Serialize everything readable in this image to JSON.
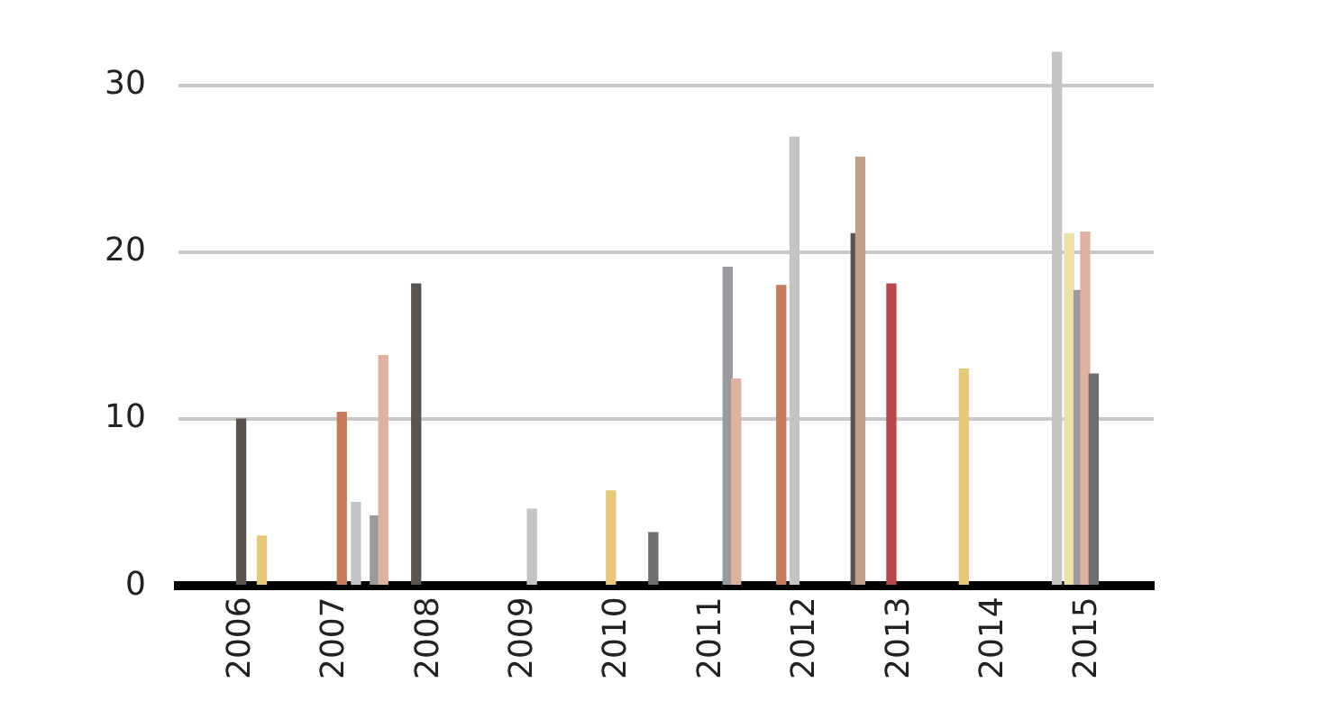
{
  "chart_data": {
    "type": "bar",
    "x": [
      2006.0,
      2006.22,
      2007.07,
      2007.22,
      2007.42,
      2007.51,
      2007.86,
      2009.09,
      2009.93,
      2010.38,
      2011.17,
      2011.26,
      2011.74,
      2011.88,
      2012.53,
      2012.58,
      2012.91,
      2013.68,
      2014.67,
      2014.8,
      2014.9,
      2014.97,
      2015.06
    ],
    "values": [
      10.0,
      3.0,
      10.4,
      5.0,
      4.2,
      13.8,
      18.1,
      4.6,
      5.7,
      3.2,
      19.1,
      12.4,
      18.0,
      26.9,
      21.1,
      25.7,
      18.1,
      13.0,
      32.0,
      21.1,
      17.7,
      21.2,
      12.7
    ],
    "colors": [
      "#5a5350",
      "#e6c878",
      "#c87a5a",
      "#c4c4c4",
      "#9a9a9e",
      "#e0b0a0",
      "#5a5350",
      "#c4c4c4",
      "#e6c878",
      "#6e6e70",
      "#9a9a9e",
      "#e0b0a0",
      "#c87a5a",
      "#c4c4c4",
      "#5a5350",
      "#c0a088",
      "#b84848",
      "#e6c878",
      "#c4c4c4",
      "#ece0a8",
      "#9a9a9e",
      "#e0b0a0",
      "#6e6e70"
    ],
    "xlim": [
      2005.85,
      2015.18
    ],
    "xticks": [
      2006,
      2007,
      2008,
      2009,
      2010,
      2011,
      2012,
      2013,
      2014,
      2015
    ],
    "ylim": [
      0,
      32
    ],
    "yticks": [
      0,
      10,
      20,
      30
    ],
    "grid": "y",
    "legend": false
  }
}
